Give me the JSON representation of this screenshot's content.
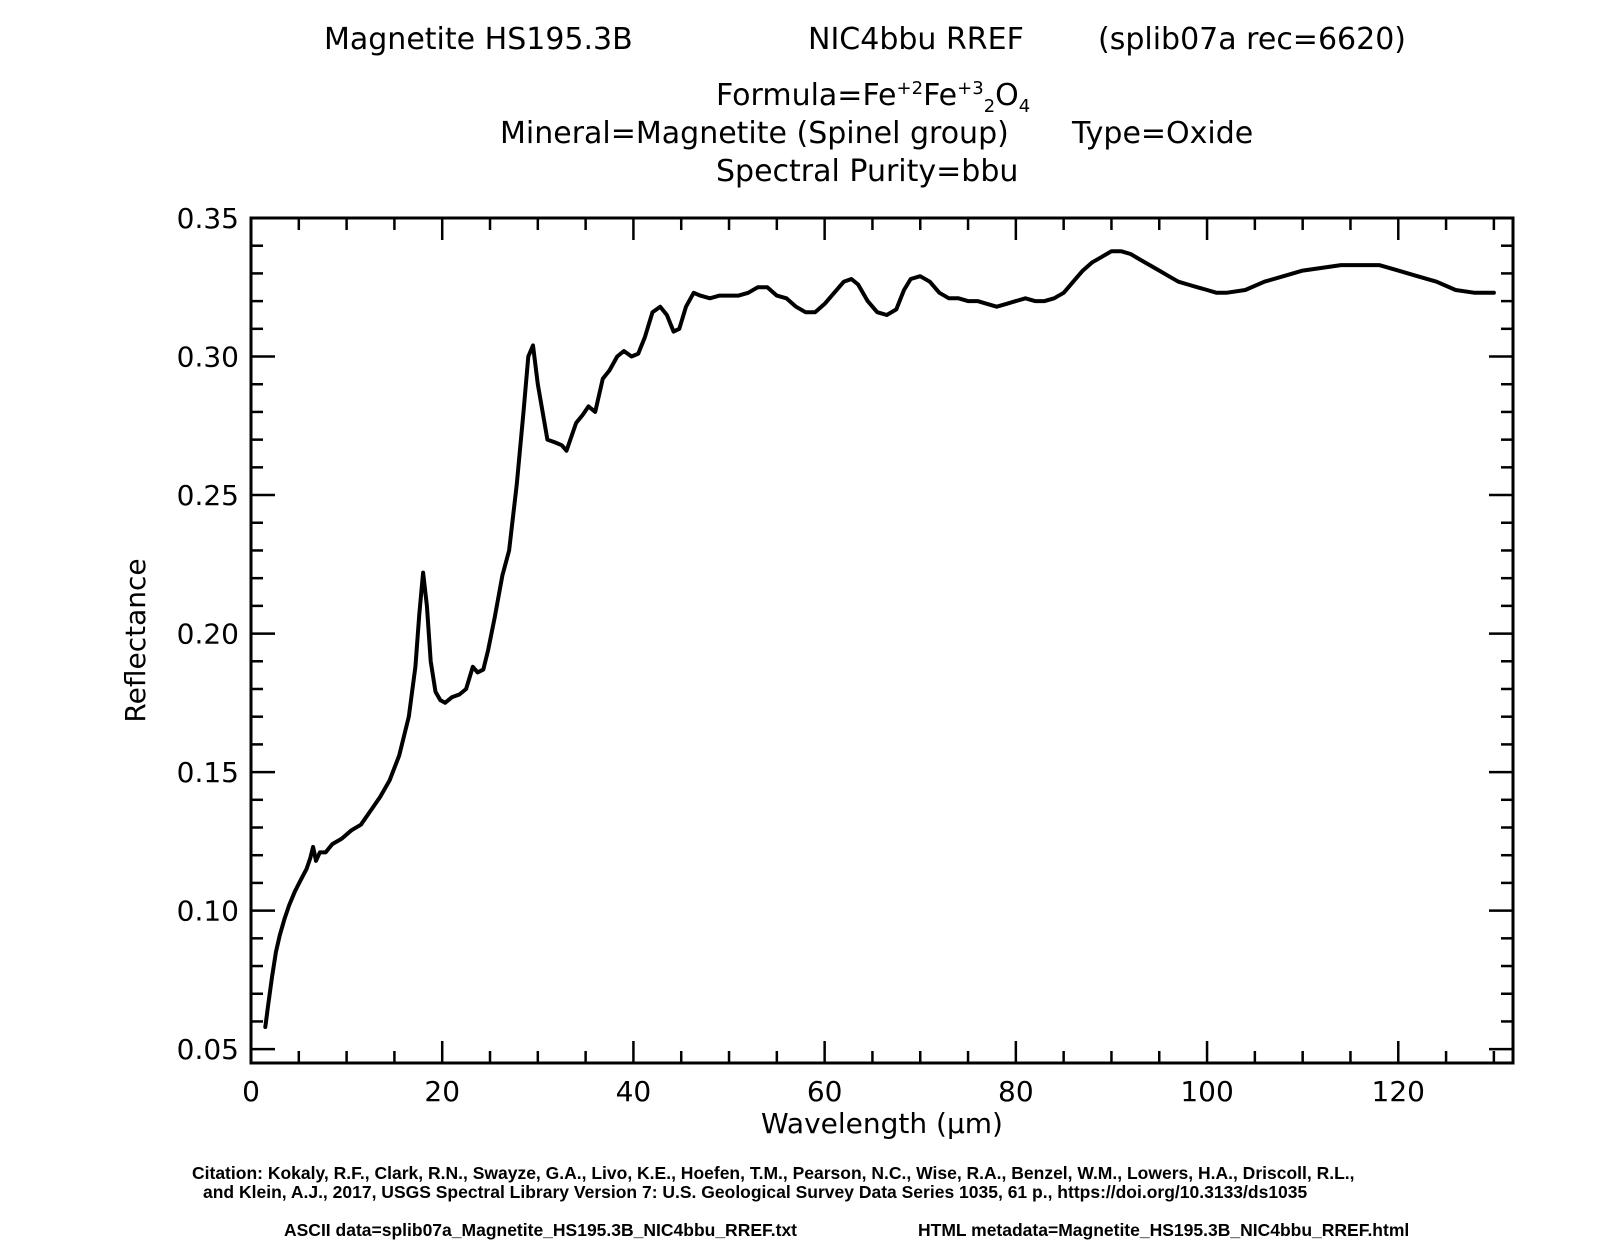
{
  "header": {
    "sample": "Magnetite HS195.3B",
    "spectrometer": "NIC4bbu RREF",
    "record": "(splib07a rec=6620)",
    "formula_prefix": "Formula=Fe",
    "formula_sup1": "+2",
    "formula_fe2": "Fe",
    "formula_sup2": "+3",
    "formula_sub1": "2",
    "formula_o": "O",
    "formula_sub2": "4",
    "mineral": "Mineral=Magnetite (Spinel group)",
    "type": "Type=Oxide",
    "purity": "Spectral Purity=bbu"
  },
  "footer": {
    "citation_line1": "Citation: Kokaly, R.F., Clark, R.N., Swayze, G.A., Livo, K.E., Hoefen, T.M., Pearson, N.C., Wise, R.A., Benzel, W.M., Lowers, H.A., Driscoll, R.L.,",
    "citation_line2": "and Klein, A.J., 2017, USGS Spectral Library Version 7: U.S. Geological Survey Data Series 1035, 61 p., https://doi.org/10.3133/ds1035",
    "ascii": "ASCII data=splib07a_Magnetite_HS195.3B_NIC4bbu_RREF.txt",
    "html": "HTML metadata=Magnetite_HS195.3B_NIC4bbu_RREF.html"
  },
  "chart_data": {
    "type": "line",
    "xlabel": "Wavelength (μm)",
    "ylabel": "Reflectance",
    "xlim": [
      0,
      132
    ],
    "ylim": [
      0.045,
      0.35
    ],
    "x_ticks": [
      0,
      20,
      40,
      60,
      80,
      100,
      120
    ],
    "x_tick_labels": [
      "0",
      "20",
      "40",
      "60",
      "80",
      "100",
      "120"
    ],
    "y_ticks": [
      0.05,
      0.1,
      0.15,
      0.2,
      0.25,
      0.3,
      0.35
    ],
    "y_tick_labels": [
      "0.05",
      "0.10",
      "0.15",
      "0.20",
      "0.25",
      "0.30",
      "0.35"
    ],
    "grid": false,
    "series": [
      {
        "color": "#000000",
        "x": [
          1.5,
          1.8,
          2.2,
          2.6,
          3.0,
          3.5,
          4.0,
          4.6,
          5.2,
          5.8,
          6.2,
          6.5,
          6.8,
          7.2,
          7.8,
          8.5,
          9.5,
          10.5,
          11.5,
          12.5,
          13.5,
          14.5,
          15.5,
          16.5,
          17.2,
          17.6,
          18.0,
          18.4,
          18.8,
          19.3,
          19.8,
          20.3,
          21.0,
          21.8,
          22.5,
          23.2,
          23.7,
          24.3,
          24.8,
          25.5,
          26.3,
          27.0,
          27.8,
          28.5,
          29.0,
          29.5,
          30.0,
          30.5,
          31.0,
          31.8,
          32.5,
          33.0,
          33.5,
          34.0,
          34.7,
          35.3,
          36.0,
          36.8,
          37.5,
          38.3,
          39.0,
          39.8,
          40.5,
          41.2,
          42.0,
          42.8,
          43.5,
          44.2,
          44.8,
          45.5,
          46.3,
          47.0,
          48.0,
          49.0,
          50.0,
          51.0,
          52.0,
          53.0,
          54.0,
          55.0,
          56.0,
          57.0,
          58.0,
          59.0,
          60.0,
          61.0,
          62.0,
          62.8,
          63.5,
          64.5,
          65.5,
          66.5,
          67.5,
          68.3,
          69.0,
          70.0,
          71.0,
          72.0,
          73.0,
          74.0,
          75.0,
          76.0,
          77.0,
          78.0,
          79.0,
          80.0,
          81.0,
          82.0,
          83.0,
          84.0,
          85.0,
          86.0,
          87.0,
          88.0,
          89.0,
          90.0,
          91.0,
          92.0,
          93.0,
          94.0,
          95.0,
          96.0,
          97.0,
          98.0,
          99.0,
          100.0,
          101.0,
          102.0,
          104.0,
          106.0,
          108.0,
          110.0,
          112.0,
          114.0,
          116.0,
          118.0,
          120.0,
          122.0,
          124.0,
          126.0,
          128.0,
          130.0
        ],
        "y": [
          0.058,
          0.066,
          0.076,
          0.085,
          0.091,
          0.097,
          0.102,
          0.107,
          0.111,
          0.115,
          0.119,
          0.123,
          0.118,
          0.121,
          0.121,
          0.124,
          0.126,
          0.129,
          0.131,
          0.136,
          0.141,
          0.147,
          0.156,
          0.17,
          0.188,
          0.207,
          0.222,
          0.21,
          0.19,
          0.179,
          0.176,
          0.175,
          0.177,
          0.178,
          0.18,
          0.188,
          0.186,
          0.187,
          0.194,
          0.206,
          0.221,
          0.23,
          0.254,
          0.28,
          0.3,
          0.304,
          0.29,
          0.28,
          0.27,
          0.269,
          0.268,
          0.266,
          0.271,
          0.276,
          0.279,
          0.282,
          0.28,
          0.292,
          0.295,
          0.3,
          0.302,
          0.3,
          0.301,
          0.307,
          0.316,
          0.318,
          0.315,
          0.309,
          0.31,
          0.318,
          0.323,
          0.322,
          0.321,
          0.322,
          0.322,
          0.322,
          0.323,
          0.325,
          0.325,
          0.322,
          0.321,
          0.318,
          0.316,
          0.316,
          0.319,
          0.323,
          0.327,
          0.328,
          0.326,
          0.32,
          0.316,
          0.315,
          0.317,
          0.324,
          0.328,
          0.329,
          0.327,
          0.323,
          0.321,
          0.321,
          0.32,
          0.32,
          0.319,
          0.318,
          0.319,
          0.32,
          0.321,
          0.32,
          0.32,
          0.321,
          0.323,
          0.327,
          0.331,
          0.334,
          0.336,
          0.338,
          0.338,
          0.337,
          0.335,
          0.333,
          0.331,
          0.329,
          0.327,
          0.326,
          0.325,
          0.324,
          0.323,
          0.323,
          0.324,
          0.327,
          0.329,
          0.331,
          0.332,
          0.333,
          0.333,
          0.333,
          0.331,
          0.329,
          0.327,
          0.324,
          0.323,
          0.323
        ]
      }
    ]
  }
}
